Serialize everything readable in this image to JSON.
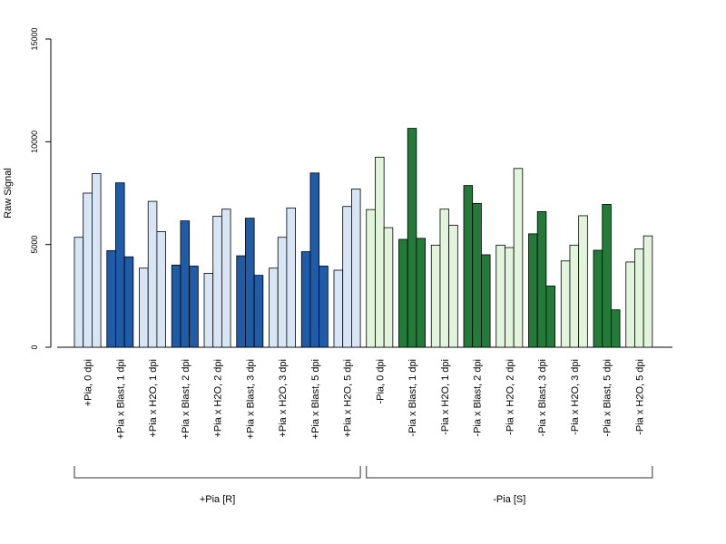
{
  "chart_data": {
    "type": "bar",
    "ylabel": "Raw Signal",
    "xlabel": "",
    "ylim": [
      0,
      15000
    ],
    "yticks": [
      0,
      5000,
      10000,
      15000
    ],
    "grid": false,
    "colors": {
      "plus_light": "#d7e5f4",
      "plus_dark": "#1f5ba7",
      "minus_light": "#e3f4dd",
      "minus_dark": "#237a39"
    },
    "categories": [
      {
        "label": "+Pia, 0 dpi",
        "values": [
          5350,
          7500,
          8450
        ],
        "color_key": "plus_light"
      },
      {
        "label": "+Pia x Blast, 1 dpi",
        "values": [
          4700,
          8000,
          4400
        ],
        "color_key": "plus_dark"
      },
      {
        "label": "+Pia x H2O, 1 dpi",
        "values": [
          3850,
          7100,
          5620
        ],
        "color_key": "plus_light"
      },
      {
        "label": "+Pia x Blast, 2 dpi",
        "values": [
          4000,
          6150,
          3950
        ],
        "color_key": "plus_dark"
      },
      {
        "label": "+Pia x H2O, 2 dpi",
        "values": [
          3600,
          6380,
          6720
        ],
        "color_key": "plus_light"
      },
      {
        "label": "+Pia x Blast, 3 dpi",
        "values": [
          4450,
          6280,
          3500
        ],
        "color_key": "plus_dark"
      },
      {
        "label": "+Pia x H2O, 3 dpi",
        "values": [
          3850,
          5350,
          6780
        ],
        "color_key": "plus_light"
      },
      {
        "label": "+Pia x Blast, 5 dpi",
        "values": [
          4650,
          8480,
          3950
        ],
        "color_key": "plus_dark"
      },
      {
        "label": "+Pia x H2O, 5 dpi",
        "values": [
          3750,
          6850,
          7700
        ],
        "color_key": "plus_light"
      },
      {
        "label": "-Pia, 0 dpi",
        "values": [
          6700,
          9250,
          5820
        ],
        "color_key": "minus_light"
      },
      {
        "label": "-Pia x Blast, 1 dpi",
        "values": [
          5250,
          10650,
          5300
        ],
        "color_key": "minus_dark"
      },
      {
        "label": "-Pia x H2O, 1 dpi",
        "values": [
          4970,
          6720,
          5940
        ],
        "color_key": "minus_light"
      },
      {
        "label": "-Pia x Blast, 2 dpi",
        "values": [
          7870,
          7000,
          4500
        ],
        "color_key": "minus_dark"
      },
      {
        "label": "-Pia x H2O, 2 dpi",
        "values": [
          4970,
          4850,
          8700
        ],
        "color_key": "minus_light"
      },
      {
        "label": "-Pia x Blast, 3 dpi",
        "values": [
          5520,
          6600,
          2980
        ],
        "color_key": "minus_dark"
      },
      {
        "label": "-Pia x H2O, 3 dpi",
        "values": [
          4200,
          4970,
          6400
        ],
        "color_key": "minus_light"
      },
      {
        "label": "-Pia x Blast, 5 dpi",
        "values": [
          4720,
          6950,
          1820
        ],
        "color_key": "minus_dark"
      },
      {
        "label": "-Pia x H2O, 5 dpi",
        "values": [
          4150,
          4780,
          5420
        ],
        "color_key": "minus_light"
      }
    ],
    "groups": [
      {
        "label": "+Pia [R]",
        "from": 0,
        "to": 8
      },
      {
        "label": "-Pia [S]",
        "from": 9,
        "to": 17
      }
    ]
  }
}
